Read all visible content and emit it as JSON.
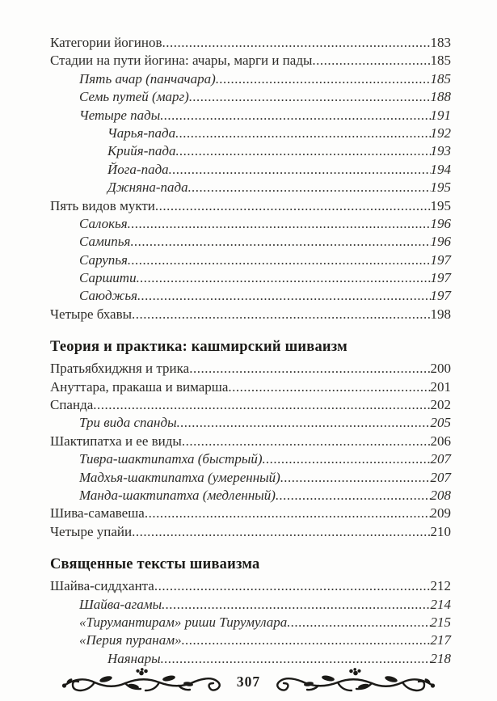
{
  "toc": {
    "sections": [
      {
        "heading": "",
        "entries": [
          {
            "title": "Категории йогинов",
            "page": "183",
            "level": 0,
            "italic": false
          },
          {
            "title": "Стадии на пути йогина: ачары, марги и пады",
            "page": "185",
            "level": 0,
            "italic": false
          },
          {
            "title": "Пять ачар (панчачара)",
            "page": "185",
            "level": 1,
            "italic": true
          },
          {
            "title": "Семь путей (марг)",
            "page": "188",
            "level": 1,
            "italic": true
          },
          {
            "title": "Четыре пады",
            "page": "191",
            "level": 1,
            "italic": true
          },
          {
            "title": "Чарья-пада",
            "page": "192",
            "level": 2,
            "italic": true
          },
          {
            "title": "Крийя-пада",
            "page": "193",
            "level": 2,
            "italic": true
          },
          {
            "title": "Йога-пада",
            "page": "194",
            "level": 2,
            "italic": true
          },
          {
            "title": "Джняна-пада",
            "page": "195",
            "level": 2,
            "italic": true
          },
          {
            "title": "Пять видов мукти",
            "page": "195",
            "level": 0,
            "italic": false
          },
          {
            "title": "Салокья",
            "page": "196",
            "level": 1,
            "italic": true
          },
          {
            "title": "Самипья",
            "page": "196",
            "level": 1,
            "italic": true
          },
          {
            "title": "Сарупья",
            "page": "197",
            "level": 1,
            "italic": true
          },
          {
            "title": "Саршити",
            "page": "197",
            "level": 1,
            "italic": true
          },
          {
            "title": "Саюджья",
            "page": "197",
            "level": 1,
            "italic": true
          },
          {
            "title": "Четыре бхавы",
            "page": "198",
            "level": 0,
            "italic": false
          }
        ]
      },
      {
        "heading": "Теория и практика: кашмирский шиваизм",
        "entries": [
          {
            "title": "Пратьябхиджня и трика",
            "page": "200",
            "level": 0,
            "italic": false
          },
          {
            "title": "Ануттара, пракаша и вимарша",
            "page": "201",
            "level": 0,
            "italic": false
          },
          {
            "title": "Спанда",
            "page": "202",
            "level": 0,
            "italic": false
          },
          {
            "title": "Три вида спанды",
            "page": "205",
            "level": 1,
            "italic": true
          },
          {
            "title": "Шактипатха и ее виды",
            "page": "206",
            "level": 0,
            "italic": false
          },
          {
            "title": "Тивра-шактипатха (быстрый)",
            "page": "207",
            "level": 1,
            "italic": true
          },
          {
            "title": "Мадхья-шактипатха (умеренный)",
            "page": "207",
            "level": 1,
            "italic": true
          },
          {
            "title": "Манда-шактипатха (медленный)",
            "page": "208",
            "level": 1,
            "italic": true
          },
          {
            "title": "Шива-самавеша",
            "page": "209",
            "level": 0,
            "italic": false
          },
          {
            "title": "Четыре упайи",
            "page": "210",
            "level": 0,
            "italic": false
          }
        ]
      },
      {
        "heading": "Священные тексты шиваизма",
        "entries": [
          {
            "title": "Шайва-сиддханта",
            "page": "212",
            "level": 0,
            "italic": false
          },
          {
            "title": "Шайва-агамы",
            "page": "214",
            "level": 1,
            "italic": true
          },
          {
            "title": "«Тирумантирам» риши Тирумулара",
            "page": "215",
            "level": 1,
            "italic": true
          },
          {
            "title": "«Перия пуранам»",
            "page": "217",
            "level": 1,
            "italic": true
          },
          {
            "title": "Наянары",
            "page": "218",
            "level": 2,
            "italic": true
          }
        ]
      }
    ]
  },
  "footer": {
    "page_number": "307"
  }
}
